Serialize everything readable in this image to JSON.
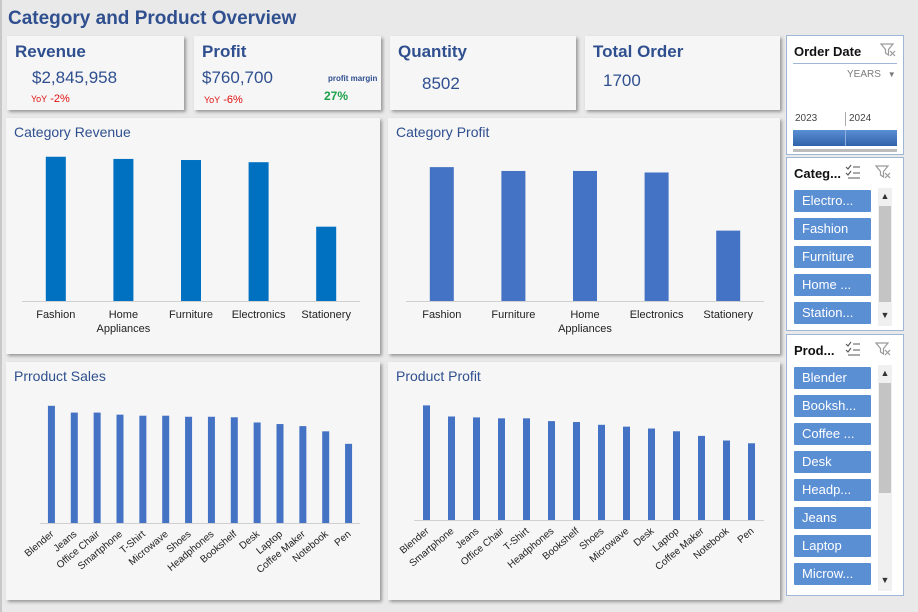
{
  "header": {
    "title": "Category and Product Overview"
  },
  "kpis": {
    "revenue": {
      "label": "Revenue",
      "value": "$2,845,958",
      "yoy_label": "YoY",
      "yoy_value": "-2%"
    },
    "profit": {
      "label": "Profit",
      "value": "$760,700",
      "yoy_label": "YoY",
      "yoy_value": "-6%",
      "margin_label": "profit margin",
      "margin_value": "27%"
    },
    "quantity": {
      "label": "Quantity",
      "value": "8502"
    },
    "orders": {
      "label": "Total Order",
      "value": "1700"
    }
  },
  "colors": {
    "title": "#2f4f8f",
    "bar_dark": "#0070c0",
    "bar_light": "#4472c4",
    "pill": "#5b8fd4",
    "negative": "#e01010",
    "positive": "#1ea04a"
  },
  "chart_data": [
    {
      "type": "bar",
      "title": "Category Revenue",
      "categories": [
        "Fashion",
        "Home Appliances",
        "Furniture",
        "Electronics",
        "Stationery"
      ],
      "values": [
        660000,
        650000,
        645000,
        635000,
        340000
      ],
      "ylim": [
        0,
        700000
      ],
      "grid": false
    },
    {
      "type": "bar",
      "title": "Category Profit",
      "categories": [
        "Fashion",
        "Furniture",
        "Home Appliances",
        "Electronics",
        "Stationery"
      ],
      "values": [
        175000,
        170000,
        170000,
        168000,
        92000
      ],
      "ylim": [
        0,
        200000
      ],
      "grid": false
    },
    {
      "type": "bar",
      "title": "Prroduct Sales",
      "categories": [
        "Blender",
        "Jeans",
        "Office Chair",
        "Smartphone",
        "T-Shirt",
        "Microwave",
        "Shoes",
        "Headphones",
        "Bookshelf",
        "Desk",
        "Laptop",
        "Coffee Maker",
        "Notebook",
        "Pen"
      ],
      "values": [
        225000,
        212000,
        212000,
        208000,
        206000,
        206000,
        204000,
        204000,
        203000,
        193000,
        190000,
        186000,
        176000,
        152000
      ],
      "ylim": [
        0,
        240000
      ],
      "grid": false
    },
    {
      "type": "bar",
      "title": "Product Profit",
      "categories": [
        "Blender",
        "Smartphone",
        "Jeans",
        "Office Chair",
        "T-Shirt",
        "Headphones",
        "Bookshelf",
        "Shoes",
        "Microwave",
        "Desk",
        "Laptop",
        "Coffee Maker",
        "Notebook",
        "Pen"
      ],
      "values": [
        62000,
        56000,
        55500,
        55000,
        55000,
        53500,
        53000,
        51500,
        50500,
        49500,
        48000,
        45500,
        43000,
        41500
      ],
      "ylim": [
        0,
        66000
      ],
      "grid": false
    }
  ],
  "slicers": {
    "date": {
      "title": "Order Date",
      "level": "YEARS",
      "years": [
        "2023",
        "2024"
      ]
    },
    "category": {
      "title": "Categ...",
      "items": [
        "Electro...",
        "Fashion",
        "Furniture",
        "Home ...",
        "Station..."
      ]
    },
    "product": {
      "title": "Prod...",
      "items": [
        "Blender",
        "Booksh...",
        "Coffee ...",
        "Desk",
        "Headp...",
        "Jeans",
        "Laptop",
        "Microw..."
      ]
    }
  }
}
